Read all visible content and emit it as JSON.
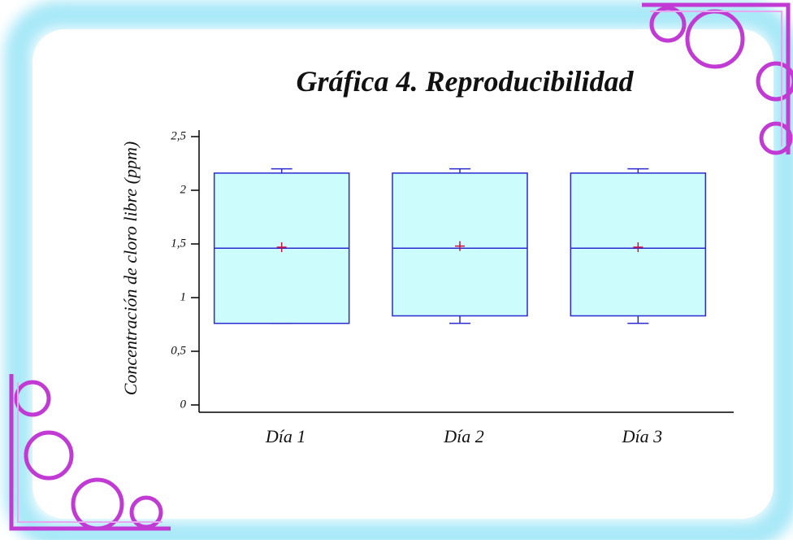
{
  "chart_data": {
    "type": "box",
    "title": "Gráfica 4. Reproducibilidad",
    "y_label": "Concentración de cloro libre (ppm)",
    "categories": [
      "Día 1",
      "Día 2",
      "Día 3"
    ],
    "boxes": [
      {
        "min": 0.76,
        "q1": 0.76,
        "median": 1.46,
        "q3": 2.16,
        "max": 2.2,
        "mean": 1.47
      },
      {
        "min": 0.76,
        "q1": 0.83,
        "median": 1.46,
        "q3": 2.16,
        "max": 2.2,
        "mean": 1.48
      },
      {
        "min": 0.76,
        "q1": 0.83,
        "median": 1.46,
        "q3": 2.16,
        "max": 2.2,
        "mean": 1.47
      }
    ],
    "box_color": "#ccfcfc",
    "line_color": "#2a2ad0",
    "mean_color": "#d0103a",
    "ylim": [
      0,
      2.5
    ],
    "yticks": [
      0,
      {
        "value": 0.5,
        "label": "0,5"
      },
      1,
      {
        "value": 1.5,
        "label": "1,5"
      },
      2,
      {
        "value": 2.5,
        "label": "2,5"
      }
    ]
  }
}
